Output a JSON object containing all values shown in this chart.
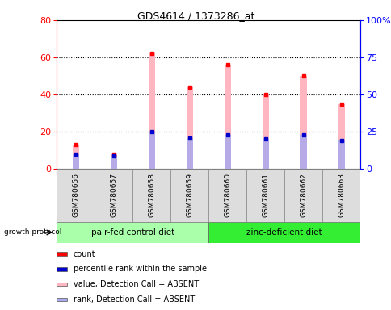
{
  "title": "GDS4614 / 1373286_at",
  "samples": [
    "GSM780656",
    "GSM780657",
    "GSM780658",
    "GSM780659",
    "GSM780660",
    "GSM780661",
    "GSM780662",
    "GSM780663"
  ],
  "count_values": [
    13,
    8,
    62,
    44,
    56,
    40,
    50,
    35
  ],
  "rank_values": [
    10,
    9,
    25,
    21,
    23,
    20,
    23,
    19
  ],
  "ylim_left": [
    0,
    80
  ],
  "ylim_right": [
    0,
    100
  ],
  "yticks_left": [
    0,
    20,
    40,
    60,
    80
  ],
  "yticks_right": [
    0,
    25,
    50,
    75,
    100
  ],
  "ytick_right_labels": [
    "0",
    "25",
    "50",
    "75",
    "100%"
  ],
  "group1_label": "pair-fed control diet",
  "group2_label": "zinc-deficient diet",
  "group1_color": "#AAFFAA",
  "group2_color": "#33EE33",
  "bar_color_pink": "#FFB6C1",
  "bar_color_blue": "#AAAAEE",
  "dot_color_red": "#FF0000",
  "dot_color_blue": "#0000CC",
  "protocol_label": "growth protocol",
  "legend_items": [
    {
      "color": "#FF0000",
      "label": "count"
    },
    {
      "color": "#0000CC",
      "label": "percentile rank within the sample"
    },
    {
      "color": "#FFB6C1",
      "label": "value, Detection Call = ABSENT"
    },
    {
      "color": "#AAAAEE",
      "label": "rank, Detection Call = ABSENT"
    }
  ]
}
